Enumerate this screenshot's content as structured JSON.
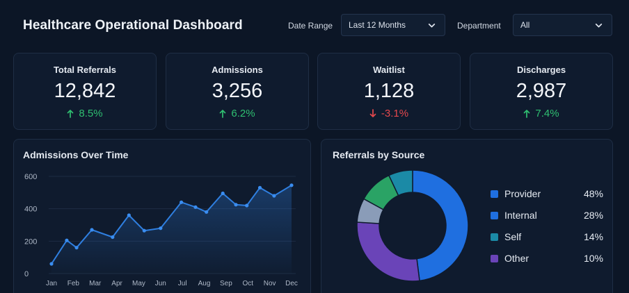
{
  "header": {
    "title": "Healthcare Operational Dashboard",
    "date_range": {
      "label": "Date Range",
      "value": "Last 12 Months"
    },
    "department": {
      "label": "Department",
      "value": "All"
    }
  },
  "kpis": [
    {
      "label": "Total Referrals",
      "value": "12,842",
      "delta": "8.5%",
      "direction": "up"
    },
    {
      "label": "Admissions",
      "value": "3,256",
      "delta": "6.2%",
      "direction": "up"
    },
    {
      "label": "Waitlist",
      "value": "1,128",
      "delta": "-3.1%",
      "direction": "down"
    },
    {
      "label": "Discharges",
      "value": "2,987",
      "delta": "7.4%",
      "direction": "up"
    }
  ],
  "colors": {
    "up": "#2fbf71",
    "down": "#e5484d",
    "line": "#2f7fe0",
    "provider": "#1f6fe0",
    "internal": "#1f6fe0",
    "self": "#1b8aa6",
    "other": "#6a44b8",
    "green_segment": "#2aa365",
    "grey_segment": "#8a9cb8"
  },
  "chart_data": [
    {
      "type": "line",
      "title": "Admissions Over Time",
      "categories": [
        "Jan",
        "Feb",
        "Mar",
        "Apr",
        "May",
        "Jun",
        "Jul",
        "Aug",
        "Sep",
        "Oct",
        "Nov",
        "Dec"
      ],
      "yticks": [
        "0",
        "200",
        "400",
        "600"
      ],
      "ylim": [
        0,
        600
      ],
      "grid": true,
      "series": [
        {
          "values": [
            60,
            205,
            160,
            270,
            225,
            360,
            265,
            280,
            440,
            410,
            380,
            495,
            425,
            420,
            530,
            480,
            545
          ]
        }
      ],
      "x": [
        0,
        0.7,
        1.15,
        1.85,
        2.8,
        3.55,
        4.25,
        5.0,
        5.95,
        6.6,
        7.1,
        7.85,
        8.45,
        8.95,
        9.55,
        10.2,
        11.0
      ]
    },
    {
      "type": "pie",
      "title": "Referrals by Source",
      "legend": "right",
      "slices": [
        {
          "name": "Provider",
          "percent_label": "48%",
          "value": 48
        },
        {
          "name": "Internal",
          "percent_label": "28%",
          "value": 28
        },
        {
          "name": "Self",
          "percent_label": "14%",
          "value": 14
        },
        {
          "name": "Other",
          "percent_label": "10%",
          "value": 10
        }
      ]
    }
  ]
}
